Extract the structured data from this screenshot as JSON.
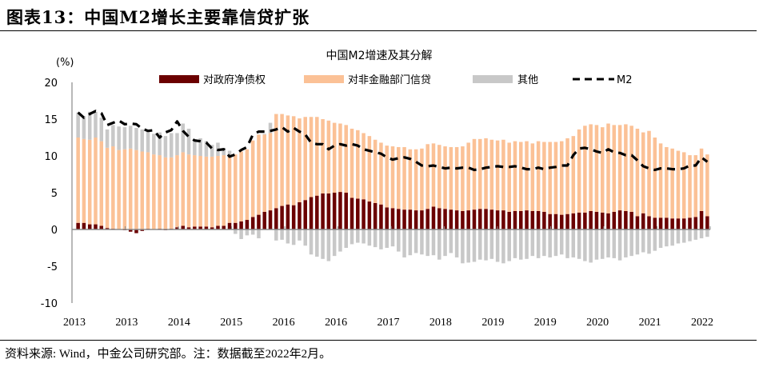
{
  "header": {
    "title": "图表13：中国M2增长主要靠信贷扩张"
  },
  "footer": {
    "source": "资料来源: Wind，中金公司研究部。注：数据截至2022年2月。"
  },
  "colors": {
    "gov": "#6b0000",
    "credit": "#fbc196",
    "other": "#c8c8c8",
    "m2": "#000000",
    "axis": "#a0a0a0"
  },
  "chart_data": {
    "type": "bar",
    "stacked": true,
    "title": "中国M2增速及其分解",
    "ylabel": "(%)",
    "xlabel": "",
    "ylim": [
      -10,
      20
    ],
    "yticks": [
      20,
      15,
      10,
      5,
      0,
      -5,
      -10
    ],
    "x_tick_labels": [
      "2013",
      "2013",
      "2014",
      "2015",
      "2016",
      "2016",
      "2017",
      "2018",
      "2019",
      "2019",
      "2020",
      "2021",
      "2022"
    ],
    "legend": {
      "placement": "top",
      "entries": [
        "对政府净债权",
        "对非金融部门信贷",
        "其他",
        "M2"
      ]
    },
    "series": [
      {
        "name": "对政府净债权",
        "kind": "bar",
        "values": [
          0.9,
          0.9,
          0.7,
          0.7,
          0.5,
          0.2,
          0.1,
          0,
          -0.1,
          -0.3,
          -0.5,
          -0.2,
          0.1,
          0,
          0.1,
          -0.1,
          0.1,
          0.3,
          0.5,
          0.3,
          0.4,
          0.4,
          0.4,
          0.3,
          0.5,
          0.5,
          0.9,
          0.9,
          1.1,
          1.3,
          1.7,
          2.0,
          2.4,
          2.6,
          2.9,
          3.2,
          3.4,
          3.3,
          3.7,
          4.0,
          4.4,
          4.6,
          4.9,
          4.9,
          5.0,
          5.1,
          5.0,
          4.3,
          4.2,
          4.1,
          3.8,
          3.6,
          3.4,
          3.0,
          2.9,
          2.8,
          2.7,
          2.7,
          2.6,
          2.6,
          2.8,
          3.1,
          2.9,
          2.8,
          2.7,
          2.6,
          2.5,
          2.6,
          2.7,
          2.8,
          2.8,
          2.7,
          2.6,
          2.6,
          2.4,
          2.5,
          2.5,
          2.6,
          2.5,
          2.5,
          2.4,
          2.1,
          2.1,
          2.0,
          2.1,
          2.2,
          2.3,
          2.3,
          2.5,
          2.4,
          2.3,
          2.2,
          2.4,
          2.6,
          2.5,
          2.4,
          1.8,
          2.2,
          1.8,
          1.6,
          1.6,
          1.6,
          1.5,
          1.5,
          1.5,
          1.6,
          1.7,
          2.5,
          1.8
        ],
        "values_note": "estimated from pixels"
      },
      {
        "name": "对非金融部门信贷",
        "kind": "bar",
        "values": [
          11.6,
          11.4,
          11.5,
          11.8,
          11.5,
          10.9,
          11.2,
          10.8,
          10.9,
          11.0,
          10.8,
          10.6,
          10.4,
          10.2,
          10.0,
          9.8,
          9.7,
          9.8,
          10.0,
          9.9,
          9.7,
          9.6,
          9.5,
          9.6,
          9.5,
          9.6,
          9.0,
          9.3,
          9.5,
          9.6,
          10.4,
          10.9,
          10.5,
          10.5,
          12.8,
          12.5,
          12.1,
          12.1,
          11.4,
          11.3,
          10.9,
          10.7,
          10.1,
          9.9,
          9.5,
          9.3,
          9.2,
          9.4,
          9.3,
          9.0,
          8.9,
          8.6,
          8.4,
          8.4,
          8.4,
          8.4,
          8.5,
          8.2,
          8.3,
          8.4,
          8.8,
          8.6,
          8.6,
          8.5,
          8.5,
          8.6,
          8.8,
          9.2,
          9.6,
          9.5,
          9.6,
          9.5,
          9.5,
          9.6,
          9.4,
          9.5,
          9.4,
          9.4,
          9.2,
          9.5,
          9.5,
          9.8,
          9.8,
          10.0,
          10.3,
          10.5,
          11.3,
          11.8,
          11.8,
          11.8,
          11.6,
          12.2,
          11.8,
          11.6,
          11.8,
          11.7,
          11.9,
          11.0,
          11.6,
          10.9,
          10.1,
          9.6,
          9.5,
          9.2,
          9.0,
          8.5,
          8.4,
          8.5,
          8.4
        ],
        "values_note": "estimated from pixels"
      },
      {
        "name": "其他",
        "kind": "bar",
        "values": [
          3.4,
          3.1,
          3.8,
          3.5,
          3.2,
          2.5,
          2.9,
          3.2,
          3.0,
          3.1,
          3.0,
          3.0,
          3.0,
          2.8,
          3.1,
          2.9,
          3.3,
          3.0,
          3.9,
          3.5,
          2.2,
          2.4,
          2.1,
          1.6,
          1.8,
          1.0,
          0.8,
          -0.6,
          -1.3,
          -0.8,
          -0.7,
          -1.2,
          0.1,
          1.4,
          -1.5,
          -1.4,
          -1.9,
          -2.1,
          -1.5,
          -2.2,
          -3.4,
          -3.7,
          -4.0,
          -4.3,
          -3.6,
          -3.0,
          -2.5,
          -2.0,
          -1.8,
          -1.9,
          -2.2,
          -2.4,
          -2.7,
          -2.5,
          -2.3,
          -3.0,
          -3.8,
          -3.5,
          -3.2,
          -3.4,
          -3.6,
          -3.5,
          -4.1,
          -3.6,
          -3.2,
          -3.8,
          -4.6,
          -4.5,
          -4.4,
          -4.1,
          -4.2,
          -4.0,
          -4.4,
          -4.6,
          -4.3,
          -3.9,
          -4.1,
          -4.0,
          -3.6,
          -3.9,
          -3.6,
          -3.8,
          -3.6,
          -3.4,
          -3.9,
          -3.8,
          -4.0,
          -4.3,
          -4.5,
          -4.1,
          -4.0,
          -3.8,
          -3.9,
          -4.2,
          -3.8,
          -3.6,
          -3.4,
          -3.1,
          -3.3,
          -2.9,
          -2.5,
          -2.3,
          -2.2,
          -1.9,
          -1.8,
          -1.6,
          -1.4,
          -1.2,
          -1.0
        ],
        "values_note": "estimated from pixels"
      },
      {
        "name": "M2",
        "kind": "line",
        "style": "dashed",
        "values": [
          15.9,
          15.2,
          15.7,
          16.1,
          15.8,
          14.2,
          14.5,
          14.8,
          14.3,
          14.4,
          14.3,
          13.7,
          13.4,
          13.5,
          12.5,
          13.2,
          13.5,
          14.7,
          13.4,
          12.6,
          12.1,
          12.0,
          11.8,
          11.0,
          10.8,
          10.9,
          9.9,
          10.2,
          10.8,
          11.2,
          12.9,
          13.3,
          13.3,
          13.4,
          13.6,
          13.9,
          13.3,
          13.8,
          13.3,
          12.9,
          11.8,
          11.6,
          11.6,
          10.9,
          11.4,
          11.6,
          11.4,
          11.6,
          11.4,
          10.9,
          10.7,
          10.5,
          10.3,
          9.8,
          9.5,
          9.7,
          9.8,
          9.6,
          9.2,
          8.7,
          8.6,
          8.7,
          8.5,
          8.3,
          8.4,
          8.3,
          8.4,
          8.4,
          8.1,
          8.2,
          8.4,
          8.5,
          8.6,
          8.5,
          8.5,
          8.6,
          8.4,
          8.2,
          8.2,
          8.4,
          8.2,
          8.4,
          8.5,
          8.7,
          8.7,
          10.1,
          11.0,
          11.1,
          10.9,
          10.6,
          10.4,
          10.9,
          10.5,
          10.4,
          10.1,
          10.1,
          9.4,
          8.6,
          8.3,
          8.1,
          8.3,
          8.3,
          8.2,
          8.2,
          8.3,
          8.7,
          8.7,
          9.8,
          9.2
        ],
        "values_note": "estimated from pixels"
      }
    ]
  }
}
